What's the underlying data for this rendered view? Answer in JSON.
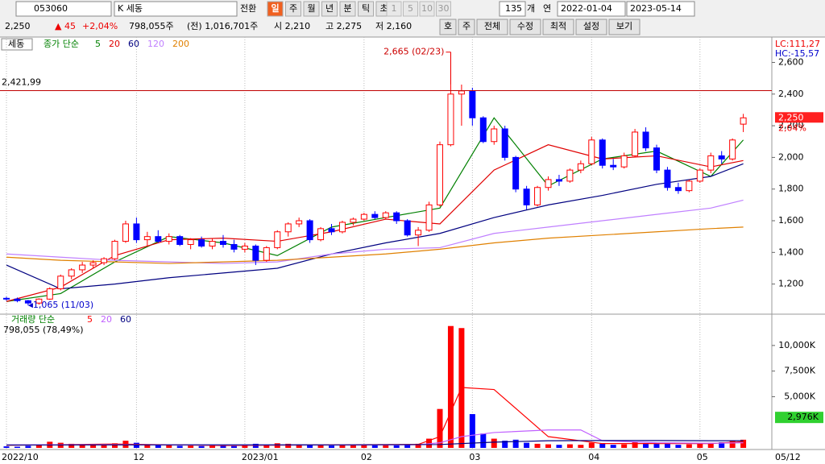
{
  "toolbar": {
    "code": "053060",
    "name": "K 세동",
    "convert": "전환",
    "periods": [
      "일",
      "주",
      "월",
      "년",
      "분",
      "틱",
      "초"
    ],
    "minutes": [
      "1",
      "5",
      "10",
      "30"
    ],
    "count": 135,
    "count_unit": "개",
    "year": "연",
    "start_date": "2022-01-04",
    "end_date": "2023-05-14"
  },
  "info": {
    "price": "2,250",
    "change": "▲ 45",
    "change_pct": "+2,04%",
    "volume": "798,055주",
    "prev_volume": "(전) 1,016,701주",
    "open": "시 2,210",
    "high": "고 2,275",
    "low": "저 2,160",
    "buttons": [
      "호",
      "주",
      "전체",
      "수정",
      "최적",
      "설정",
      "보기"
    ]
  },
  "chart_data": [
    {
      "type": "candlestick",
      "title": "세동",
      "legend_title": "종가 단순",
      "up_color": "#ff0000",
      "down_color": "#0000ff",
      "categories": [
        "2022/10",
        null,
        null,
        null,
        null,
        null,
        null,
        null,
        null,
        null,
        null,
        null,
        "12",
        null,
        null,
        null,
        null,
        null,
        null,
        null,
        null,
        null,
        "2023/01",
        null,
        null,
        null,
        null,
        null,
        null,
        null,
        null,
        null,
        null,
        "02",
        null,
        null,
        null,
        null,
        null,
        null,
        null,
        null,
        null,
        "03",
        null,
        null,
        null,
        null,
        null,
        null,
        null,
        null,
        null,
        null,
        "04",
        null,
        null,
        null,
        null,
        null,
        null,
        null,
        null,
        null,
        "05",
        null,
        null,
        null,
        null
      ],
      "open": [
        1110,
        1105,
        1095,
        1080,
        1105,
        1170,
        1250,
        1290,
        1320,
        1335,
        1360,
        1470,
        1580,
        1480,
        1500,
        1470,
        1500,
        1450,
        1480,
        1440,
        1470,
        1450,
        1420,
        1440,
        1350,
        1430,
        1530,
        1580,
        1600,
        1480,
        1550,
        1530,
        1590,
        1610,
        1640,
        1620,
        1650,
        1600,
        1510,
        1540,
        1700,
        2080,
        2400,
        2420,
        2250,
        2100,
        2180,
        2000,
        1800,
        1700,
        1810,
        1860,
        1850,
        1920,
        1960,
        2110,
        1950,
        1940,
        2010,
        2160,
        2060,
        1920,
        1810,
        1790,
        1850,
        1920,
        2010,
        1990,
        2210
      ],
      "high": [
        1120,
        1115,
        1100,
        1110,
        1180,
        1260,
        1300,
        1340,
        1350,
        1370,
        1480,
        1600,
        1620,
        1530,
        1540,
        1520,
        1510,
        1490,
        1500,
        1490,
        1510,
        1480,
        1460,
        1450,
        1440,
        1540,
        1590,
        1620,
        1610,
        1560,
        1580,
        1600,
        1620,
        1650,
        1660,
        1660,
        1660,
        1610,
        1560,
        1720,
        2100,
        2665,
        2460,
        2440,
        2260,
        2200,
        2200,
        2010,
        1820,
        1820,
        1880,
        1890,
        1930,
        1980,
        2130,
        2120,
        1990,
        2030,
        2180,
        2190,
        2080,
        1940,
        1840,
        1860,
        1930,
        2030,
        2040,
        2120,
        2275
      ],
      "low": [
        1095,
        1085,
        1065,
        1070,
        1100,
        1160,
        1230,
        1270,
        1300,
        1320,
        1350,
        1460,
        1460,
        1440,
        1460,
        1450,
        1440,
        1420,
        1430,
        1420,
        1430,
        1400,
        1400,
        1320,
        1340,
        1420,
        1500,
        1560,
        1460,
        1470,
        1510,
        1520,
        1570,
        1600,
        1610,
        1610,
        1580,
        1500,
        1440,
        1530,
        1690,
        2070,
        2200,
        2200,
        2090,
        2080,
        1980,
        1780,
        1670,
        1690,
        1790,
        1820,
        1840,
        1900,
        1950,
        1930,
        1920,
        1930,
        2000,
        2040,
        1900,
        1790,
        1770,
        1780,
        1840,
        1900,
        1960,
        1980,
        2160
      ],
      "close": [
        1105,
        1095,
        1080,
        1105,
        1170,
        1250,
        1290,
        1320,
        1335,
        1360,
        1470,
        1580,
        1480,
        1500,
        1470,
        1500,
        1450,
        1480,
        1440,
        1470,
        1450,
        1420,
        1440,
        1350,
        1430,
        1530,
        1580,
        1600,
        1480,
        1550,
        1530,
        1590,
        1610,
        1640,
        1620,
        1650,
        1600,
        1510,
        1540,
        1700,
        2080,
        2400,
        2420,
        2250,
        2100,
        2180,
        2000,
        1800,
        1700,
        1810,
        1860,
        1850,
        1920,
        1960,
        2110,
        1950,
        1940,
        2010,
        2160,
        2060,
        1920,
        1810,
        1790,
        1850,
        1920,
        2010,
        1990,
        2110,
        2250
      ],
      "series": [
        {
          "name": "5",
          "color": "#008000",
          "x": [
            0,
            5,
            10,
            15,
            20,
            25,
            30,
            35,
            40,
            45,
            50,
            55,
            60,
            65,
            68
          ],
          "values": [
            1090,
            1140,
            1340,
            1500,
            1460,
            1380,
            1560,
            1620,
            1680,
            2250,
            1820,
            1990,
            2040,
            1880,
            2110
          ]
        },
        {
          "name": "20",
          "color": "#e00000",
          "x": [
            0,
            5,
            10,
            15,
            20,
            25,
            30,
            35,
            40,
            45,
            50,
            55,
            60,
            65,
            68
          ],
          "values": [
            1090,
            1180,
            1380,
            1480,
            1490,
            1470,
            1530,
            1610,
            1580,
            1920,
            2080,
            1990,
            2010,
            1940,
            1980
          ]
        },
        {
          "name": "60",
          "color": "#000080",
          "x": [
            0,
            5,
            10,
            15,
            20,
            25,
            30,
            35,
            40,
            45,
            50,
            55,
            60,
            65,
            68
          ],
          "values": [
            1320,
            1170,
            1200,
            1240,
            1270,
            1300,
            1390,
            1460,
            1520,
            1620,
            1700,
            1760,
            1830,
            1880,
            1960
          ]
        },
        {
          "name": "120",
          "color": "#c080ff",
          "x": [
            0,
            5,
            10,
            15,
            20,
            25,
            30,
            35,
            40,
            45,
            50,
            55,
            60,
            65,
            68
          ],
          "values": [
            1390,
            1370,
            1350,
            1340,
            1330,
            1340,
            1390,
            1420,
            1430,
            1520,
            1560,
            1600,
            1640,
            1680,
            1730
          ]
        },
        {
          "name": "200",
          "color": "#e08000",
          "x": [
            0,
            5,
            10,
            15,
            20,
            25,
            30,
            35,
            40,
            45,
            50,
            55,
            60,
            65,
            68
          ],
          "values": [
            1370,
            1350,
            1340,
            1330,
            1340,
            1350,
            1370,
            1390,
            1420,
            1460,
            1490,
            1510,
            1530,
            1550,
            1560
          ]
        }
      ],
      "ylim": [
        1020,
        2750
      ],
      "yticks": [
        {
          "value": 1200,
          "label": "1,200"
        },
        {
          "value": 1400,
          "label": "1,400"
        },
        {
          "value": 1600,
          "label": "1,600"
        },
        {
          "value": 1800,
          "label": "1,800"
        },
        {
          "value": 2000,
          "label": "2,000"
        },
        {
          "value": 2200,
          "label": "2,200"
        },
        {
          "value": 2400,
          "label": "2,400"
        },
        {
          "value": 2600,
          "label": "2,600"
        }
      ],
      "reference_line": {
        "value": 2421.99,
        "label": "2,421,99"
      },
      "high_annotation": {
        "value": 2665,
        "label": "2,665 (02/23)"
      },
      "low_annotation": {
        "value": 1065,
        "label": "1,065 (11/03)"
      },
      "last_price": {
        "value": 2250,
        "label": "2,250",
        "change": "2,04%"
      },
      "corner_labels": [
        "LC:111,27",
        "HC:-15,57"
      ],
      "end_date": "05/12"
    },
    {
      "type": "bar",
      "title": "거래량 단순",
      "subtitle": "798,055 (78,49%)",
      "up_color": "#ff0000",
      "down_color": "#0000ff",
      "values": [
        150,
        120,
        200,
        300,
        600,
        500,
        400,
        350,
        300,
        250,
        450,
        700,
        500,
        300,
        250,
        280,
        200,
        220,
        180,
        200,
        250,
        180,
        200,
        400,
        300,
        450,
        400,
        350,
        300,
        250,
        220,
        260,
        300,
        280,
        250,
        260,
        240,
        350,
        400,
        900,
        3800,
        11900,
        11700,
        3300,
        1400,
        900,
        700,
        800,
        500,
        400,
        350,
        300,
        350,
        300,
        500,
        400,
        300,
        350,
        600,
        450,
        500,
        400,
        300,
        350,
        450,
        500,
        550,
        700,
        798
      ],
      "series": [
        {
          "name": "5",
          "color": "#ff0000",
          "x": [
            0,
            10,
            20,
            30,
            38,
            40,
            41,
            42,
            45,
            50,
            55,
            60,
            65,
            68
          ],
          "values": [
            250,
            380,
            230,
            300,
            340,
            1100,
            3500,
            5900,
            5700,
            1100,
            420,
            420,
            420,
            600
          ]
        },
        {
          "name": "20",
          "color": "#c060ff",
          "x": [
            0,
            10,
            20,
            30,
            38,
            40,
            42,
            45,
            50,
            53,
            55,
            60,
            65,
            68
          ],
          "values": [
            300,
            320,
            280,
            280,
            310,
            500,
            1100,
            1500,
            1750,
            1750,
            700,
            500,
            450,
            500
          ]
        },
        {
          "name": "60",
          "color": "#000080",
          "x": [
            0,
            10,
            20,
            30,
            40,
            45,
            50,
            55,
            60,
            65,
            68
          ],
          "values": [
            280,
            290,
            300,
            290,
            330,
            560,
            700,
            720,
            720,
            700,
            700
          ]
        }
      ],
      "ylim": [
        0,
        12900
      ],
      "yticks": [
        {
          "value": 5000,
          "label": "5,000K"
        },
        {
          "value": 7500,
          "label": "7,500K"
        },
        {
          "value": 10000,
          "label": "10,000K"
        }
      ],
      "marker": {
        "value": 2976,
        "label": "2,976K"
      }
    }
  ]
}
